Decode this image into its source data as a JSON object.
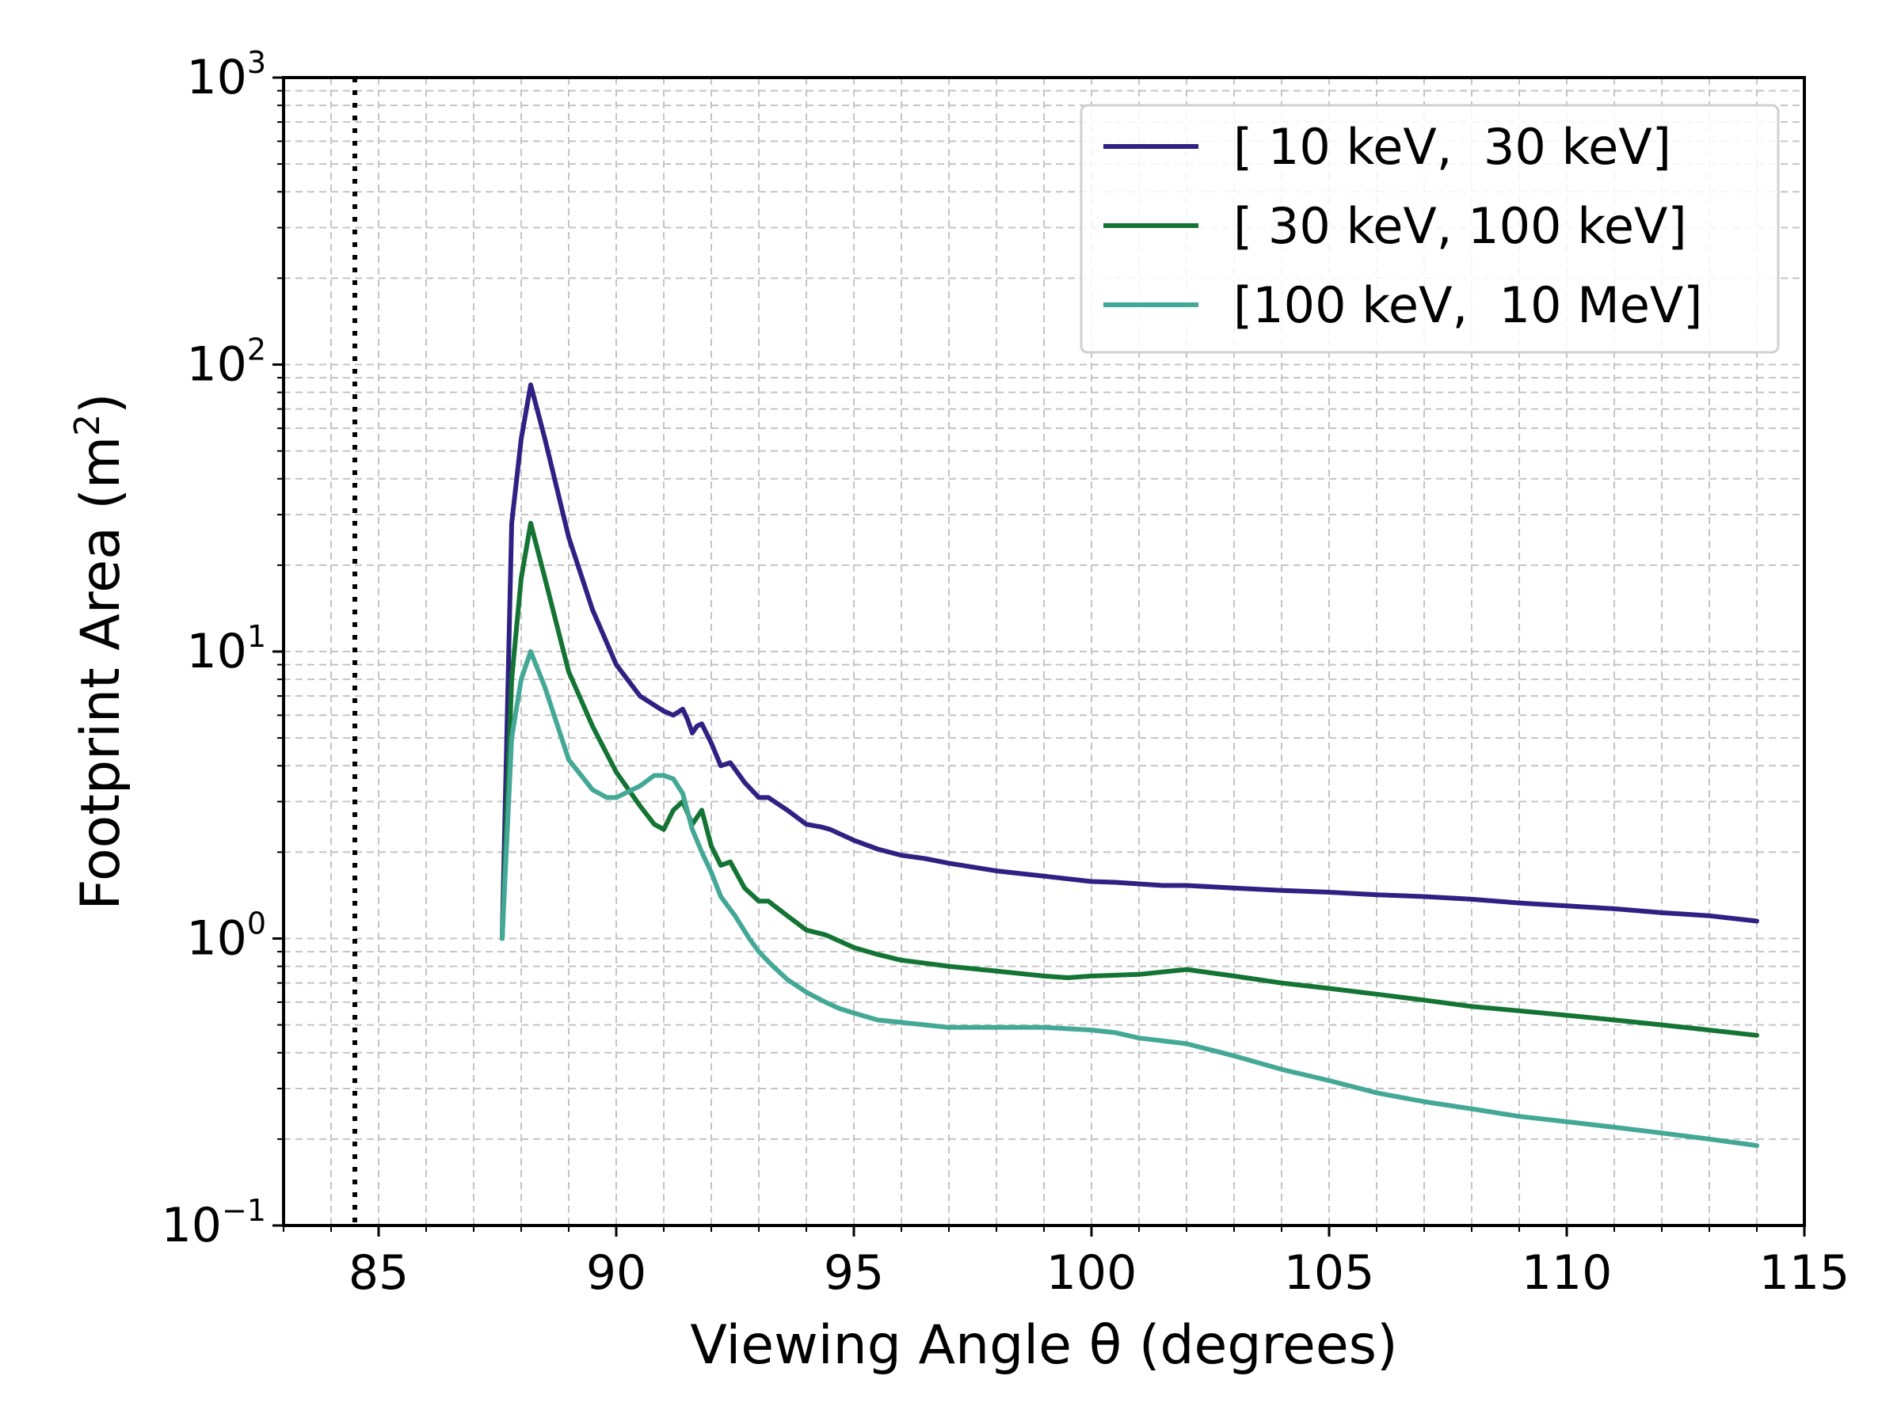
{
  "chart_data": {
    "type": "line",
    "xlabel": "Viewing Angle θ (degrees)",
    "ylabel_text": "Footprint Area (m",
    "ylabel_exp": "2",
    "ylabel_close": ")",
    "xlim": [
      83,
      115
    ],
    "ylim": [
      0.1,
      1000
    ],
    "yscale": "log",
    "grid": true,
    "legend_position": "top-right",
    "x_ticks": [
      85,
      90,
      95,
      100,
      105,
      110,
      115
    ],
    "x_tick_labels": [
      "85",
      "90",
      "95",
      "100",
      "105",
      "110",
      "115"
    ],
    "y_ticks": [
      {
        "value": 0.1,
        "base": "10",
        "exp": "−1"
      },
      {
        "value": 1,
        "base": "10",
        "exp": "0"
      },
      {
        "value": 10,
        "base": "10",
        "exp": "1"
      },
      {
        "value": 100,
        "base": "10",
        "exp": "2"
      },
      {
        "value": 1000,
        "base": "10",
        "exp": "3"
      }
    ],
    "vline": {
      "x": 84.5,
      "style": "dotted",
      "color": "#000000"
    },
    "series": [
      {
        "name": "[ 10 keV,  30 keV]",
        "color": "#2e2183",
        "x": [
          87.6,
          87.8,
          88.0,
          88.2,
          88.5,
          89.0,
          89.5,
          90.0,
          90.5,
          91.0,
          91.2,
          91.4,
          91.5,
          91.6,
          91.7,
          91.8,
          92.0,
          92.2,
          92.4,
          92.7,
          93.0,
          93.2,
          93.6,
          94.0,
          94.3,
          94.5,
          95.0,
          95.5,
          96.0,
          96.5,
          97.0,
          98.0,
          99.0,
          100.0,
          100.5,
          101.0,
          101.5,
          102.0,
          103.0,
          104.0,
          105.0,
          106.0,
          107.0,
          108.0,
          109.0,
          110.0,
          111.0,
          112.0,
          113.0,
          114.0
        ],
        "y": [
          1.0,
          28,
          55,
          85,
          55,
          25,
          14,
          9,
          7,
          6.2,
          6.0,
          6.3,
          5.8,
          5.2,
          5.5,
          5.6,
          4.8,
          4.0,
          4.1,
          3.5,
          3.1,
          3.1,
          2.8,
          2.5,
          2.45,
          2.4,
          2.2,
          2.05,
          1.95,
          1.9,
          1.83,
          1.72,
          1.65,
          1.58,
          1.57,
          1.55,
          1.53,
          1.53,
          1.5,
          1.47,
          1.45,
          1.42,
          1.4,
          1.37,
          1.33,
          1.3,
          1.27,
          1.23,
          1.2,
          1.15
        ]
      },
      {
        "name": "[ 30 keV, 100 keV]",
        "color": "#147434",
        "x": [
          87.6,
          87.8,
          88.0,
          88.2,
          88.5,
          89.0,
          89.5,
          90.0,
          90.5,
          90.8,
          91.0,
          91.2,
          91.4,
          91.6,
          91.8,
          92.0,
          92.2,
          92.4,
          92.7,
          93.0,
          93.2,
          93.6,
          94.0,
          94.4,
          94.7,
          95.0,
          95.5,
          96.0,
          96.5,
          97.0,
          98.0,
          99.0,
          99.5,
          100.0,
          101.0,
          102.0,
          103.0,
          104.0,
          105.0,
          106.0,
          107.0,
          108.0,
          109.0,
          110.0,
          111.0,
          112.0,
          113.0,
          114.0
        ],
        "y": [
          1.0,
          8,
          18,
          28,
          18,
          8.5,
          5.5,
          3.8,
          2.9,
          2.5,
          2.4,
          2.8,
          3.0,
          2.5,
          2.8,
          2.1,
          1.8,
          1.85,
          1.5,
          1.35,
          1.35,
          1.2,
          1.07,
          1.03,
          0.98,
          0.93,
          0.88,
          0.84,
          0.82,
          0.8,
          0.77,
          0.74,
          0.73,
          0.74,
          0.75,
          0.78,
          0.74,
          0.7,
          0.67,
          0.64,
          0.61,
          0.58,
          0.56,
          0.54,
          0.52,
          0.5,
          0.48,
          0.46
        ]
      },
      {
        "name": "[100 keV,  10 MeV]",
        "color": "#44a896",
        "x": [
          87.6,
          87.8,
          88.0,
          88.2,
          88.5,
          89.0,
          89.5,
          89.8,
          90.0,
          90.5,
          90.8,
          91.0,
          91.2,
          91.4,
          91.6,
          91.8,
          92.0,
          92.2,
          92.5,
          92.8,
          93.0,
          93.3,
          93.6,
          94.0,
          94.4,
          94.7,
          95.0,
          95.5,
          96.0,
          96.5,
          97.0,
          98.0,
          99.0,
          100.0,
          100.5,
          101.0,
          102.0,
          103.0,
          104.0,
          105.0,
          106.0,
          107.0,
          108.0,
          109.0,
          110.0,
          111.0,
          112.0,
          113.0,
          114.0
        ],
        "y": [
          1.0,
          5,
          8,
          10,
          7.5,
          4.2,
          3.3,
          3.1,
          3.1,
          3.4,
          3.7,
          3.7,
          3.6,
          3.2,
          2.4,
          2.0,
          1.7,
          1.4,
          1.2,
          1.0,
          0.9,
          0.8,
          0.72,
          0.65,
          0.6,
          0.57,
          0.55,
          0.52,
          0.51,
          0.5,
          0.49,
          0.49,
          0.49,
          0.48,
          0.47,
          0.45,
          0.43,
          0.39,
          0.35,
          0.32,
          0.29,
          0.27,
          0.255,
          0.24,
          0.23,
          0.22,
          0.21,
          0.2,
          0.19
        ]
      }
    ]
  }
}
